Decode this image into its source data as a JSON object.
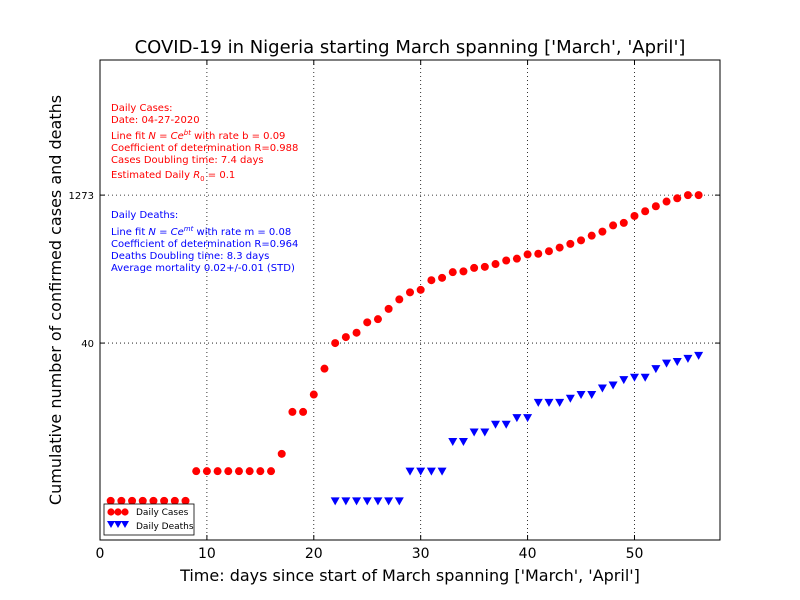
{
  "chart_data": {
    "type": "scatter",
    "title": "COVID-19 in Nigeria starting March spanning ['March', 'April']",
    "xlabel": "Time: days since start of March spanning ['March', 'April']",
    "ylabel": "Cumulative number of confirmed cases and deaths",
    "xlim": [
      0,
      58
    ],
    "ylim": [
      0.4,
      30000
    ],
    "y_scale": "log",
    "x_ticks": [
      0,
      10,
      20,
      30,
      40,
      50
    ],
    "x_tick_labels": [
      "0",
      "10",
      "20",
      "30",
      "40",
      "50"
    ],
    "y_ticks": [
      40,
      1273
    ],
    "y_tick_labels": [
      "40",
      "1273"
    ],
    "grid": true,
    "legend_position": "bottom-left",
    "series": [
      {
        "name": "Daily Cases",
        "color": "#ff0000",
        "marker": "circle",
        "x": [
          1,
          2,
          3,
          4,
          5,
          6,
          7,
          8,
          9,
          10,
          11,
          12,
          13,
          14,
          15,
          16,
          17,
          18,
          19,
          20,
          21,
          22,
          23,
          24,
          25,
          26,
          27,
          28,
          29,
          30,
          31,
          32,
          33,
          34,
          35,
          36,
          37,
          38,
          39,
          40,
          41,
          42,
          43,
          44,
          45,
          46,
          47,
          48,
          49,
          50,
          51,
          52,
          53,
          54,
          55,
          56
        ],
        "y": [
          1,
          1,
          1,
          1,
          1,
          1,
          1,
          1,
          2,
          2,
          2,
          2,
          2,
          2,
          2,
          2,
          3,
          8,
          8,
          12,
          22,
          40,
          46,
          51,
          65,
          70,
          89,
          111,
          131,
          139,
          174,
          184,
          210,
          214,
          232,
          238,
          254,
          276,
          288,
          318,
          323,
          343,
          373,
          407,
          442,
          493,
          542,
          627,
          665,
          782,
          873,
          981,
          1095,
          1182,
          1273,
          1273
        ]
      },
      {
        "name": "Daily Deaths",
        "color": "#0000ff",
        "marker": "triangle-down",
        "x": [
          22,
          23,
          24,
          25,
          26,
          27,
          28,
          29,
          30,
          31,
          32,
          33,
          34,
          35,
          36,
          37,
          38,
          39,
          40,
          41,
          42,
          43,
          44,
          45,
          46,
          47,
          48,
          49,
          50,
          51,
          52,
          53,
          54,
          55,
          56
        ],
        "y": [
          1,
          1,
          1,
          1,
          1,
          1,
          1,
          2,
          2,
          2,
          2,
          4,
          4,
          5,
          5,
          6,
          6,
          7,
          7,
          10,
          10,
          10,
          11,
          12,
          12,
          14,
          15,
          17,
          18,
          18,
          22,
          25,
          26,
          28,
          30
        ]
      }
    ],
    "annotations": {
      "cases": [
        "Daily Cases:",
        "Date: 04-27-2020",
        "Line fit N = Ce^{bt} with rate b = 0.09",
        "Coefficient of determination R=0.988",
        "Cases Doubling time: 7.4 days",
        "Estimated Daily R_0 = 0.1"
      ],
      "deaths": [
        "Daily Deaths:",
        "Line fit N = Ce^{mt} with rate m = 0.08",
        "Coefficient of determination R=0.964",
        "Deaths Doubling time: 8.3 days",
        "Average mortality 0.02+/-0.01 (STD)"
      ]
    }
  },
  "annotation_parts": {
    "case_fit_prefix": "Line fit ",
    "case_fit_formula": "N = Ce",
    "case_fit_exponent": "bt",
    "case_fit_mid": " with rate ",
    "case_fit_rate": "b = 0.09",
    "case_r0_prefix": "Estimated Daily ",
    "case_r0_symbol": "R",
    "case_r0_sub": "0",
    "case_r0_value": " = 0.1",
    "death_fit_prefix": "Line fit ",
    "death_fit_formula": "N = Ce",
    "death_fit_exponent": "mt",
    "death_fit_mid": " with rate ",
    "death_fit_rate": "m = 0.08"
  }
}
